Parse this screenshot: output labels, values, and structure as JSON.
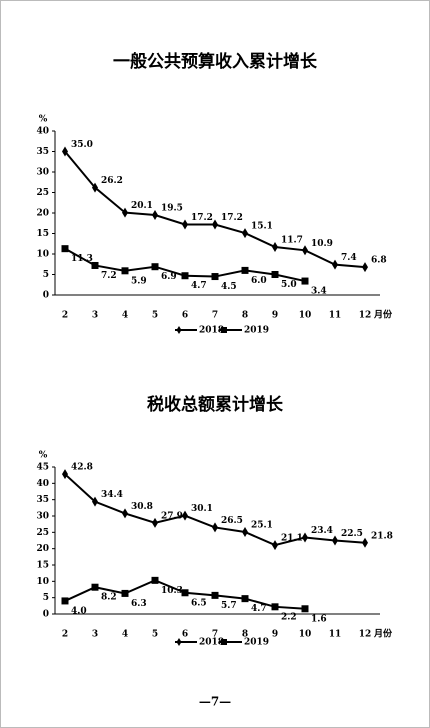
{
  "chart_data": [
    {
      "type": "line",
      "title": "一般公共预算收入累计增长",
      "y_label": "%",
      "x_label": "月份",
      "categories": [
        "2",
        "3",
        "4",
        "5",
        "6",
        "7",
        "8",
        "9",
        "10",
        "11",
        "12"
      ],
      "ylim": [
        0,
        40
      ],
      "yticks": [
        0,
        5,
        10,
        15,
        20,
        25,
        30,
        35,
        40
      ],
      "legend": "bottom",
      "series": [
        {
          "name": "2018",
          "color": "#000000",
          "marker": "diamond",
          "values": [
            35.0,
            26.2,
            20.1,
            19.5,
            17.2,
            17.2,
            15.1,
            11.7,
            10.9,
            7.4,
            6.8
          ],
          "value_labels": [
            "35.0",
            "26.2",
            "20.1",
            "19.5",
            "17.2",
            "17.2",
            "15.1",
            "11.7",
            "10.9",
            "7.4",
            "6.8"
          ]
        },
        {
          "name": "2019",
          "color": "#000000",
          "marker": "square",
          "values": [
            11.3,
            7.2,
            5.9,
            6.9,
            4.7,
            4.5,
            6.0,
            5.0,
            3.4,
            null,
            null
          ],
          "value_labels": [
            "11.3",
            "7.2",
            "5.9",
            "6.9",
            "4.7",
            "4.5",
            "6.0",
            "5.0",
            "3.4",
            null,
            null
          ]
        }
      ]
    },
    {
      "type": "line",
      "title": "税收总额累计增长",
      "y_label": "%",
      "x_label": "月份",
      "categories": [
        "2",
        "3",
        "4",
        "5",
        "6",
        "7",
        "8",
        "9",
        "10",
        "11",
        "12"
      ],
      "ylim": [
        0,
        45
      ],
      "yticks": [
        0,
        5,
        10,
        15,
        20,
        25,
        30,
        35,
        40,
        45
      ],
      "legend": "bottom",
      "series": [
        {
          "name": "2018",
          "color": "#000000",
          "marker": "diamond",
          "values": [
            42.8,
            34.4,
            30.8,
            27.9,
            30.1,
            26.5,
            25.1,
            21.1,
            23.4,
            22.5,
            21.8
          ],
          "value_labels": [
            "42.8",
            "34.4",
            "30.8",
            "27.9",
            "30.1",
            "26.5",
            "25.1",
            "21.1",
            "23.4",
            "22.5",
            "21.8"
          ]
        },
        {
          "name": "2019",
          "color": "#000000",
          "marker": "square",
          "values": [
            4.0,
            8.2,
            6.3,
            10.3,
            6.5,
            5.7,
            4.7,
            2.2,
            1.6,
            null,
            null
          ],
          "value_labels": [
            "4.0",
            "8.2",
            "6.3",
            "10.3",
            "6.5",
            "5.7",
            "4.7",
            "2.2",
            "1.6",
            null,
            null
          ]
        }
      ]
    }
  ],
  "page_number": "—7—"
}
